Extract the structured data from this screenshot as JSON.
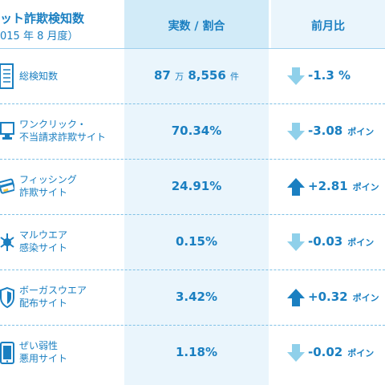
{
  "header": {
    "title": "ット詐欺検知数",
    "subtitle": "015 年 8 月度）",
    "col_value": "実数 / 割合",
    "col_compare": "前月比"
  },
  "colors": {
    "accent": "#1a7fc1",
    "value_column_bg": "#eaf5fc",
    "arrow_down": "#8fd0ea",
    "arrow_up": "#1a7fc1"
  },
  "rows": [
    {
      "icon": "document-icon",
      "label_line1": "総検知数",
      "label_line2": "",
      "value_main_1": "87",
      "value_unit_1": "万",
      "value_main_2": "8,556",
      "value_unit_2": "件",
      "trend": "down",
      "change": "-1.3 %",
      "change_unit": ""
    },
    {
      "icon": "monitor-icon",
      "label_line1": "ワンクリック・",
      "label_line2": "不当請求詐欺サイト",
      "value": "70.34%",
      "trend": "down",
      "change": "-3.08",
      "change_unit": "ポイン"
    },
    {
      "icon": "card-icon",
      "label_line1": "フィッシング",
      "label_line2": "詐欺サイト",
      "value": "24.91%",
      "trend": "up",
      "change": "+2.81",
      "change_unit": "ポイン"
    },
    {
      "icon": "virus-icon",
      "label_line1": "マルウエア",
      "label_line2": "感染サイト",
      "value": "0.15%",
      "trend": "down",
      "change": "-0.03",
      "change_unit": "ポイン"
    },
    {
      "icon": "shield-icon",
      "label_line1": "ボーガスウエア",
      "label_line2": "配布サイト",
      "value": "3.42%",
      "trend": "up",
      "change": "+0.32",
      "change_unit": "ポイン"
    },
    {
      "icon": "tablet-icon",
      "label_line1": "ぜい弱性",
      "label_line2": "悪用サイト",
      "value": "1.18%",
      "trend": "down",
      "change": "-0.02",
      "change_unit": "ポイン"
    }
  ]
}
